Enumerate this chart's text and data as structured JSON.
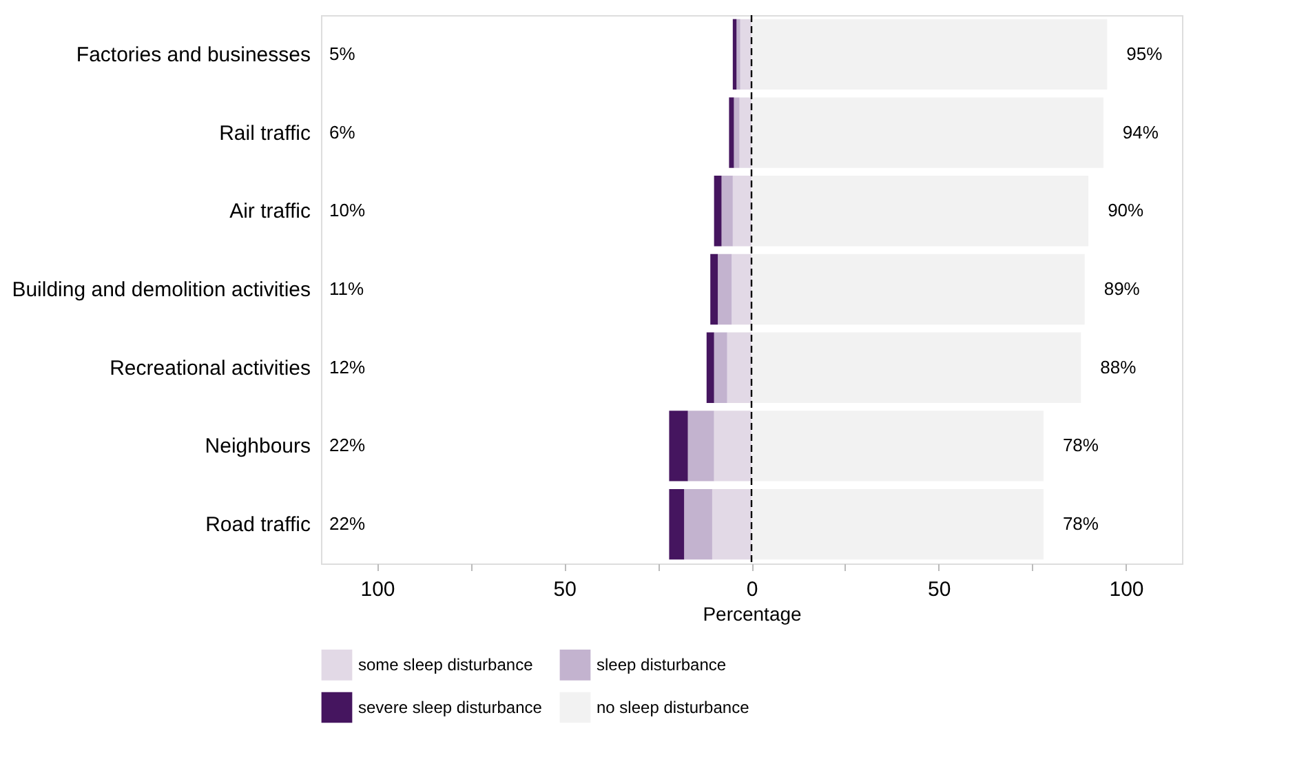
{
  "chart_data": {
    "type": "bar",
    "orientation": "horizontal",
    "stacked": true,
    "xlabel": "Percentage",
    "categories": [
      "Factories and businesses",
      "Rail traffic",
      "Air traffic",
      "Building and demolition activities",
      "Recreational activities",
      "Neighbours",
      "Road traffic"
    ],
    "series": [
      {
        "name": "some sleep disturbance",
        "color": "#e2d9e6",
        "values": [
          -3,
          -3.2,
          -5,
          -5.3,
          -6.5,
          -10,
          -10.5
        ]
      },
      {
        "name": "sleep disturbance",
        "color": "#c3b3cf",
        "values": [
          -1,
          -1.5,
          -3,
          -3.7,
          -3.5,
          -7,
          -7.5
        ]
      },
      {
        "name": "severe sleep disturbance",
        "color": "#45155f",
        "values": [
          -1,
          -1.3,
          -2,
          -2,
          -2,
          -5,
          -4
        ]
      },
      {
        "name": "no sleep disturbance",
        "color": "#f2f2f2",
        "values": [
          95,
          94,
          90,
          89,
          88,
          78,
          78
        ],
        "value_labels": [
          "95%",
          "94%",
          "90%",
          "89%",
          "88%",
          "78%",
          "78%"
        ]
      }
    ],
    "annotations": [
      "5%",
      "6%",
      "10%",
      "11%",
      "12%",
      "22%",
      "22%"
    ],
    "xlim": [
      -115,
      115
    ],
    "xticks": [
      {
        "value": -100,
        "label": "100"
      },
      {
        "value": -75,
        "label": null
      },
      {
        "value": -50,
        "label": "50"
      },
      {
        "value": -25,
        "label": null
      },
      0,
      {
        "value": 25,
        "label": null
      },
      50,
      {
        "value": 75,
        "label": null
      },
      100
    ],
    "ref_lines": [
      {
        "axis": "x",
        "value": 0,
        "color": "#000000",
        "line_style": "dashed"
      }
    ],
    "grid": false,
    "legend": "bottom"
  }
}
